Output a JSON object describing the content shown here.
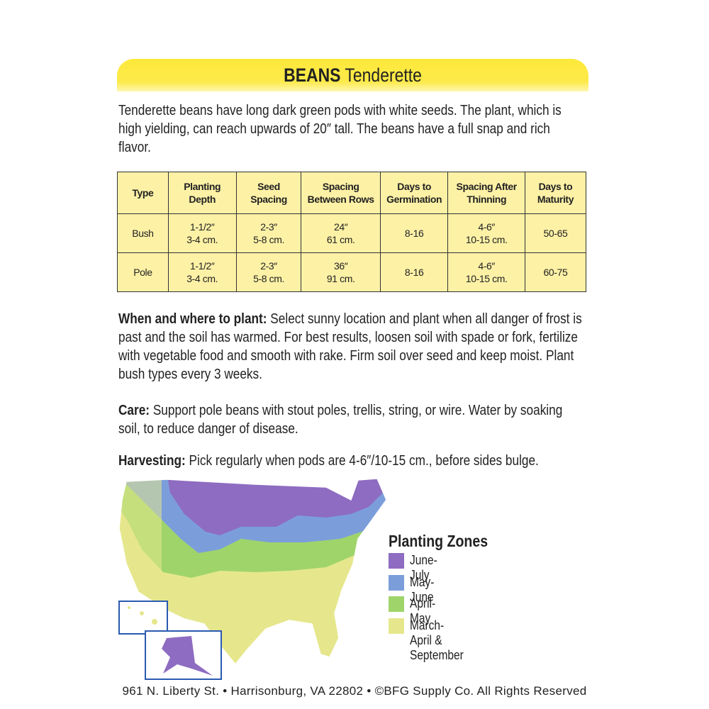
{
  "header": {
    "title": "BEANS",
    "variety": "Tenderette"
  },
  "intro": "Tenderette beans have long dark green pods with white seeds.  The plant, which is high yielding, can reach upwards of 20″ tall.  The beans have a full snap and rich flavor.",
  "table": {
    "columns": [
      "Type",
      "Planting\nDepth",
      "Seed\nSpacing",
      "Spacing\nBetween Rows",
      "Days to\nGermination",
      "Spacing After\nThinning",
      "Days to\nMaturity"
    ],
    "rows": [
      [
        "Bush",
        "1-1/2″\n3-4 cm.",
        "2-3″\n5-8 cm.",
        "24″\n61 cm.",
        "8-16",
        "4-6″\n10-15 cm.",
        "50-65"
      ],
      [
        "Pole",
        "1-1/2″\n3-4 cm.",
        "2-3″\n5-8 cm.",
        "36″\n91 cm.",
        "8-16",
        "4-6″\n10-15 cm.",
        "60-75"
      ]
    ]
  },
  "sections": [
    {
      "heading": "When and where to plant:",
      "text": "Select sunny location and plant when all danger of frost is past and the soil has warmed. For best results, loosen soil with spade or fork, fertilize with vegetable food and smooth with rake. Firm soil over seed and keep moist. Plant bush types every 3 weeks."
    },
    {
      "heading": "Care:",
      "text": "Support pole beans with stout poles, trellis, string, or wire. Water by soaking soil, to reduce danger of disease."
    },
    {
      "heading": "Harvesting:",
      "text": "Pick regularly when pods are 4-6″/10-15 cm., before sides bulge."
    }
  ],
  "legend": {
    "title": "Planting Zones",
    "items": [
      {
        "label": "June-July",
        "color": "#8e6cc1"
      },
      {
        "label": "May-June",
        "color": "#7b9edb"
      },
      {
        "label": "April-May",
        "color": "#9fd46b"
      },
      {
        "label": "March-April & September",
        "color": "#e6e78d"
      }
    ]
  },
  "footer": "961 N. Liberty St. • Harrisonburg, VA 22802 • ©BFG Supply Co. All Rights Reserved"
}
